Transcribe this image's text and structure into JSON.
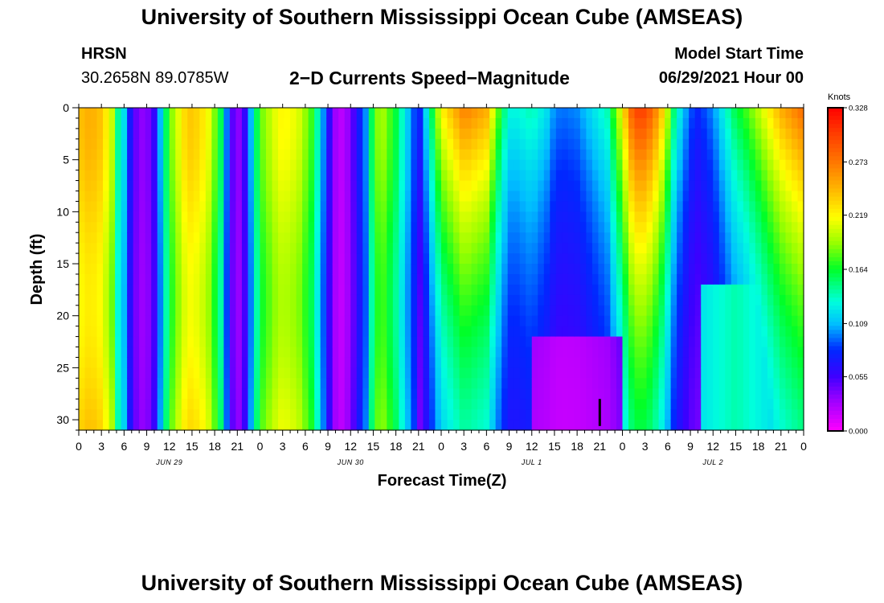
{
  "header": {
    "title_top": "University of Southern Mississippi Ocean Cube (AMSEAS)",
    "title_bottom": "University of Southern Mississippi Ocean Cube (AMSEAS)",
    "station": "HRSN",
    "coords": "30.2658N  89.0785W",
    "plot_title": "2−D Currents Speed−Magnitude",
    "model_start_label": "Model Start Time",
    "model_start_value": "06/29/2021 Hour 00"
  },
  "chart_data": {
    "type": "heatmap",
    "title": "2-D Currents Speed-Magnitude",
    "xlabel": "Forecast Time(Z)",
    "ylabel": "Depth (ft)",
    "x_hours_range": [
      0,
      96
    ],
    "x_tick_step_hours": 3,
    "x_tick_labels": [
      "0",
      "3",
      "6",
      "9",
      "12",
      "15",
      "18",
      "21",
      "0",
      "3",
      "6",
      "9",
      "12",
      "15",
      "18",
      "21",
      "0",
      "3",
      "6",
      "9",
      "12",
      "15",
      "18",
      "21",
      "0",
      "3",
      "6",
      "9",
      "12",
      "15",
      "18",
      "21",
      "0"
    ],
    "date_labels": [
      {
        "label": "JUN 29",
        "hour": 12
      },
      {
        "label": "JUN 30",
        "hour": 36
      },
      {
        "label": "JUL 1",
        "hour": 60
      },
      {
        "label": "JUL 2",
        "hour": 84
      }
    ],
    "y_range": [
      0,
      31
    ],
    "y_ticks": [
      0,
      5,
      10,
      15,
      20,
      25,
      30
    ],
    "y_tick_labels": [
      "0",
      "5",
      "10",
      "15",
      "20",
      "25",
      "30"
    ],
    "colorbar": {
      "unit": "Knots",
      "min": 0.0,
      "max": 0.328,
      "tick_values": [
        0.0,
        0.055,
        0.109,
        0.164,
        0.219,
        0.273,
        0.328
      ],
      "tick_labels": [
        "0.000",
        "0.055",
        "0.109",
        "0.164",
        "0.219",
        "0.273",
        "0.328"
      ]
    },
    "time_marker_hour": 69,
    "speed_profile": {
      "description": "Approximate surface speed (knots) by forecast hour, with depth-dependent attenuation after hour 45",
      "hours": [
        0,
        1.5,
        3,
        4.5,
        5,
        6,
        7,
        8,
        9,
        10,
        11,
        12,
        14,
        15,
        17,
        19,
        20,
        21,
        22,
        23,
        24,
        26,
        27,
        29,
        31,
        32,
        33,
        34,
        35,
        36,
        38,
        39,
        40,
        42,
        45,
        48,
        51,
        54,
        56,
        57,
        58,
        60,
        62,
        63,
        64,
        66,
        68,
        69,
        70,
        72,
        73,
        74,
        75,
        76,
        77,
        78,
        79,
        81,
        82,
        84,
        85,
        86,
        87,
        88,
        90,
        93,
        96
      ],
      "knots": [
        0.24,
        0.25,
        0.24,
        0.2,
        0.15,
        0.12,
        0.06,
        0.035,
        0.035,
        0.06,
        0.12,
        0.18,
        0.23,
        0.24,
        0.22,
        0.15,
        0.06,
        0.03,
        0.06,
        0.12,
        0.18,
        0.21,
        0.22,
        0.21,
        0.17,
        0.12,
        0.07,
        0.03,
        0.02,
        0.04,
        0.1,
        0.17,
        0.2,
        0.16,
        0.07,
        0.22,
        0.27,
        0.25,
        0.16,
        0.13,
        0.13,
        0.14,
        0.12,
        0.1,
        0.095,
        0.1,
        0.12,
        0.13,
        0.14,
        0.22,
        0.28,
        0.3,
        0.3,
        0.28,
        0.25,
        0.2,
        0.14,
        0.09,
        0.08,
        0.1,
        0.12,
        0.14,
        0.16,
        0.17,
        0.2,
        0.25,
        0.28
      ]
    }
  }
}
